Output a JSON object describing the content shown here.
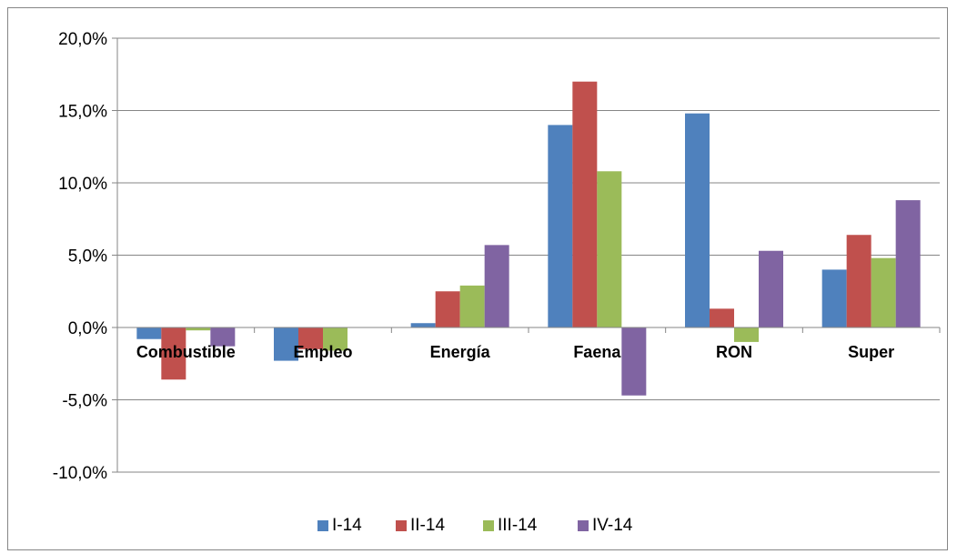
{
  "chart_data": {
    "type": "bar",
    "title": "",
    "xlabel": "",
    "ylabel": "",
    "categories": [
      "Combustible",
      "Empleo",
      "Energía",
      "Faena",
      "RON",
      "Super"
    ],
    "series": [
      {
        "name": "I-14",
        "color": "#4F81BD",
        "values": [
          -0.8,
          -2.3,
          0.3,
          14.0,
          14.8,
          4.0
        ]
      },
      {
        "name": "II-14",
        "color": "#C0504D",
        "values": [
          -3.6,
          -1.5,
          2.5,
          17.0,
          1.3,
          6.4
        ]
      },
      {
        "name": "III-14",
        "color": "#9BBB59",
        "values": [
          -0.2,
          -1.6,
          2.9,
          10.8,
          -1.0,
          4.8
        ]
      },
      {
        "name": "IV-14",
        "color": "#8064A2",
        "values": [
          -1.3,
          0.0,
          5.7,
          -4.7,
          5.3,
          8.8
        ]
      }
    ],
    "ylim": [
      -10,
      20
    ],
    "yticks": [
      -10,
      -5,
      0,
      5,
      10,
      15,
      20
    ],
    "ytick_labels": [
      "-10,0%",
      "-5,0%",
      "0,0%",
      "5,0%",
      "10,0%",
      "15,0%",
      "20,0%"
    ],
    "grid": true,
    "legend_position": "bottom"
  }
}
